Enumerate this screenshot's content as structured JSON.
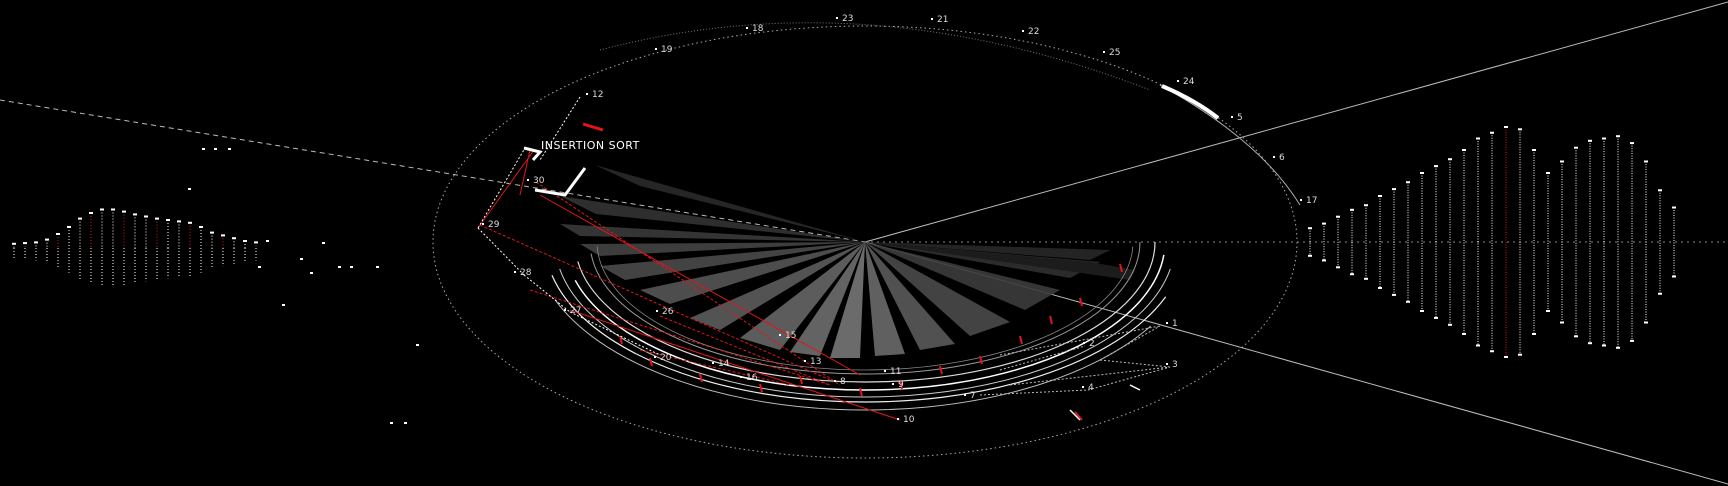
{
  "title": "INSERTION SORT",
  "colors": {
    "background": "#000000",
    "accent": "#e0161b",
    "line": "#ffffff"
  },
  "ring_labels": [
    {
      "text": "23"
    },
    {
      "text": "21"
    },
    {
      "text": "18"
    },
    {
      "text": "22"
    },
    {
      "text": "19"
    },
    {
      "text": "25"
    },
    {
      "text": "24"
    },
    {
      "text": "12"
    },
    {
      "text": "5"
    },
    {
      "text": "6"
    },
    {
      "text": "17"
    },
    {
      "text": "30"
    },
    {
      "text": "29"
    },
    {
      "text": "28"
    },
    {
      "text": "27"
    },
    {
      "text": "26"
    },
    {
      "text": "15"
    },
    {
      "text": "20"
    },
    {
      "text": "14"
    },
    {
      "text": "13"
    },
    {
      "text": "11"
    },
    {
      "text": "16"
    },
    {
      "text": "8"
    },
    {
      "text": "9"
    },
    {
      "text": "7"
    },
    {
      "text": "10"
    },
    {
      "text": "1"
    },
    {
      "text": "2"
    },
    {
      "text": "3"
    },
    {
      "text": "4"
    }
  ],
  "right_bars": [
    0.12,
    0.16,
    0.22,
    0.28,
    0.32,
    0.4,
    0.46,
    0.52,
    0.6,
    0.66,
    0.72,
    0.8,
    0.9,
    0.95,
    1.0,
    0.98,
    0.8,
    0.6,
    0.7,
    0.82,
    0.88,
    0.9,
    0.92,
    0.86,
    0.7,
    0.45,
    0.3
  ],
  "left_bars": [
    0.06,
    0.07,
    0.08,
    0.12,
    0.2,
    0.3,
    0.42,
    0.5,
    0.55,
    0.55,
    0.52,
    0.48,
    0.45,
    0.42,
    0.4,
    0.38,
    0.36,
    0.3,
    0.22,
    0.18,
    0.14,
    0.1,
    0.08
  ]
}
